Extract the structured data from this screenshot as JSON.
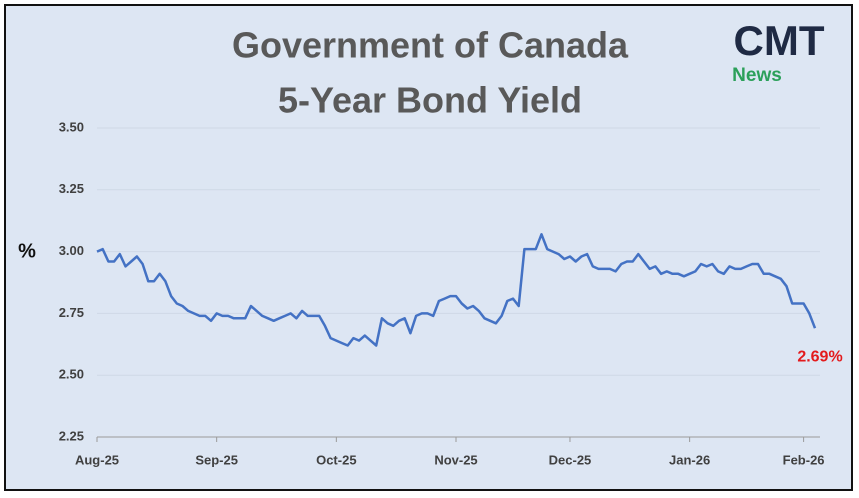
{
  "chart_data": {
    "type": "line",
    "title": [
      "Government of Canada",
      "5-Year Bond Yield"
    ],
    "logo": {
      "text": "CMT",
      "subtext": "News"
    },
    "y_label": "%",
    "categories": [
      "Aug-25",
      null,
      null,
      null,
      null,
      null,
      null,
      null,
      null,
      null,
      null,
      null,
      null,
      null,
      null,
      null,
      null,
      null,
      null,
      null,
      null,
      "Sep-25",
      null,
      null,
      null,
      null,
      null,
      null,
      null,
      null,
      null,
      null,
      null,
      null,
      null,
      null,
      null,
      null,
      null,
      null,
      null,
      null,
      "Oct-25",
      null,
      null,
      null,
      null,
      null,
      null,
      null,
      null,
      null,
      null,
      null,
      null,
      null,
      null,
      null,
      null,
      null,
      null,
      null,
      null,
      "Nov-25",
      null,
      null,
      null,
      null,
      null,
      null,
      null,
      null,
      null,
      null,
      null,
      null,
      null,
      null,
      null,
      null,
      null,
      null,
      null,
      "Dec-25",
      null,
      null,
      null,
      null,
      null,
      null,
      null,
      null,
      null,
      null,
      null,
      null,
      null,
      null,
      null,
      null,
      null,
      null,
      null,
      null,
      "Jan-26",
      null,
      null,
      null,
      null,
      null,
      null,
      null,
      null,
      null,
      null,
      null,
      null,
      null,
      null,
      null,
      null,
      null,
      null,
      null,
      "Feb-26",
      null,
      null
    ],
    "series": [
      {
        "name": "5-Year Bond Yield",
        "color": "#4472c4",
        "values": [
          3.0,
          3.01,
          2.96,
          2.96,
          2.99,
          2.94,
          2.96,
          2.98,
          2.95,
          2.88,
          2.88,
          2.91,
          2.88,
          2.82,
          2.79,
          2.78,
          2.76,
          2.75,
          2.74,
          2.74,
          2.72,
          2.75,
          2.74,
          2.74,
          2.73,
          2.73,
          2.73,
          2.78,
          2.76,
          2.74,
          2.73,
          2.72,
          2.73,
          2.74,
          2.75,
          2.73,
          2.76,
          2.74,
          2.74,
          2.74,
          2.7,
          2.65,
          2.64,
          2.63,
          2.62,
          2.65,
          2.64,
          2.66,
          2.64,
          2.62,
          2.73,
          2.71,
          2.7,
          2.72,
          2.73,
          2.67,
          2.74,
          2.75,
          2.75,
          2.74,
          2.8,
          2.81,
          2.82,
          2.82,
          2.79,
          2.77,
          2.78,
          2.76,
          2.73,
          2.72,
          2.71,
          2.74,
          2.8,
          2.81,
          2.78,
          3.01,
          3.01,
          3.01,
          3.07,
          3.01,
          3.0,
          2.99,
          2.97,
          2.98,
          2.96,
          2.98,
          2.99,
          2.94,
          2.93,
          2.93,
          2.93,
          2.92,
          2.95,
          2.96,
          2.96,
          2.99,
          2.96,
          2.93,
          2.94,
          2.91,
          2.92,
          2.91,
          2.91,
          2.9,
          2.91,
          2.92,
          2.95,
          2.94,
          2.95,
          2.92,
          2.91,
          2.94,
          2.93,
          2.93,
          2.94,
          2.95,
          2.95,
          2.91,
          2.91,
          2.9,
          2.89,
          2.86,
          2.79,
          2.79,
          2.79,
          2.75,
          2.69
        ],
        "value_labels": [
          null,
          null,
          null,
          null,
          null,
          null,
          null,
          null,
          null,
          null,
          null,
          null,
          null,
          null,
          null,
          null,
          null,
          null,
          null,
          null,
          null,
          null,
          null,
          null,
          null,
          null,
          null,
          null,
          null,
          null,
          null,
          null,
          null,
          null,
          null,
          null,
          null,
          null,
          null,
          null,
          null,
          null,
          null,
          null,
          null,
          null,
          null,
          null,
          null,
          null,
          null,
          null,
          null,
          null,
          null,
          null,
          null,
          null,
          null,
          null,
          null,
          null,
          null,
          null,
          null,
          null,
          null,
          null,
          null,
          null,
          null,
          null,
          null,
          null,
          null,
          null,
          null,
          null,
          null,
          null,
          null,
          null,
          null,
          null,
          null,
          null,
          null,
          null,
          null,
          null,
          null,
          null,
          null,
          null,
          null,
          null,
          null,
          null,
          null,
          null,
          null,
          null,
          null,
          null,
          null,
          null,
          null,
          null,
          null,
          null,
          null,
          null,
          null,
          null,
          null,
          null,
          null,
          null,
          null,
          null,
          null,
          null,
          null,
          null,
          null,
          null,
          "2.69%"
        ],
        "value_label_color": "#e31a1c"
      }
    ],
    "ylim": [
      2.25,
      3.5
    ],
    "yticks": [
      {
        "value": 2.25,
        "label": "2.25"
      },
      {
        "value": 2.5,
        "label": "2.50"
      },
      {
        "value": 2.75,
        "label": "2.75"
      },
      {
        "value": 3,
        "label": "3.00"
      },
      {
        "value": 3.25,
        "label": "3.25"
      },
      {
        "value": 3.5,
        "label": "3.50"
      }
    ],
    "grid": true,
    "background": "#dde6f3"
  }
}
